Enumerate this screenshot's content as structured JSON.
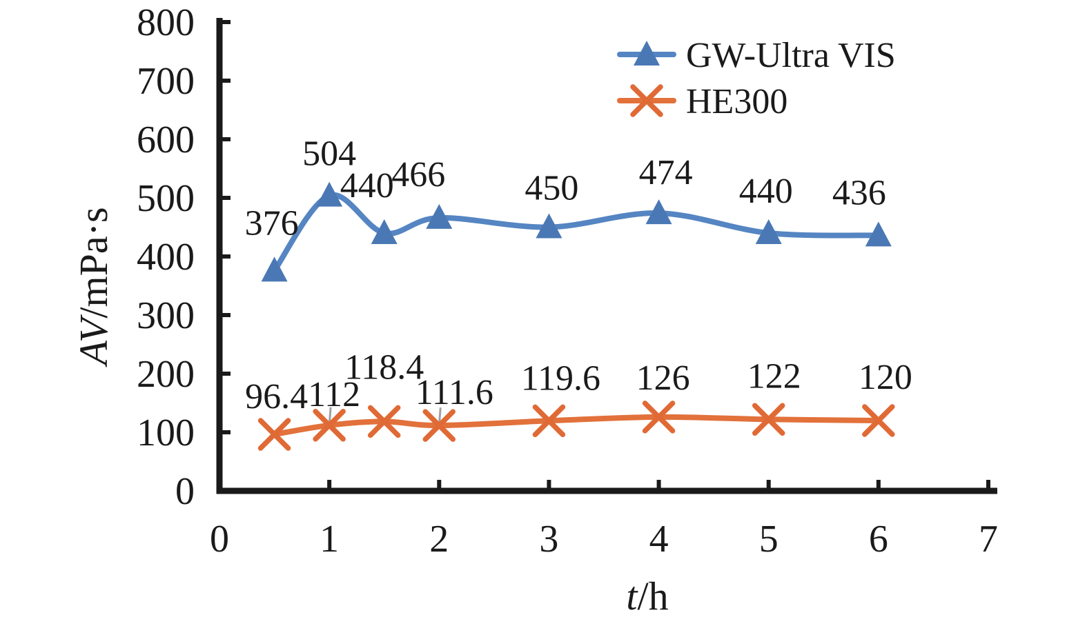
{
  "figure": {
    "background": "#ffffff",
    "text_color": "#1a1a1a",
    "axis_color": "#1a1a1a"
  },
  "chart_data": {
    "type": "line",
    "title": "",
    "xlabel_italic": "t",
    "xlabel_rest": "/h",
    "ylabel_italic": "AV",
    "ylabel_rest": "/mPa·s",
    "xlim": [
      0,
      7
    ],
    "ylim": [
      0,
      800
    ],
    "xticks": [
      "0",
      "1",
      "2",
      "3",
      "4",
      "5",
      "6",
      "7"
    ],
    "yticks": [
      "0",
      "100",
      "200",
      "300",
      "400",
      "500",
      "600",
      "700",
      "800"
    ],
    "grid": false,
    "smoothed_lines": true,
    "legend_position": "top-right-inside",
    "x": [
      0.5,
      1,
      1.5,
      2,
      3,
      4,
      5,
      6
    ],
    "series": [
      {
        "name": "GW-Ultra VIS",
        "line_color": "#5585c2",
        "marker_color": "#4a78b4",
        "marker": "triangle",
        "values": [
          376,
          504,
          440,
          466,
          450,
          474,
          440,
          436
        ],
        "labels": [
          "376",
          "504",
          "440",
          "466",
          "450",
          "474",
          "440",
          "436"
        ],
        "label_offsets": [
          [
            -4,
            -70
          ],
          [
            0,
            -62
          ],
          [
            -25,
            -70
          ],
          [
            -30,
            -64
          ],
          [
            4,
            -58
          ],
          [
            10,
            -60
          ],
          [
            -4,
            -62
          ],
          [
            -28,
            -63
          ]
        ]
      },
      {
        "name": "HE300",
        "line_color": "#e2713b",
        "marker_color": "#e06a35",
        "marker": "x",
        "values": [
          96.4,
          112,
          118.4,
          111.6,
          119.6,
          126,
          122,
          120
        ],
        "labels": [
          "96.4",
          "112",
          "118.4",
          "111.6",
          "119.6",
          "126",
          "122",
          "120"
        ],
        "label_offsets": [
          [
            3,
            -56
          ],
          [
            7,
            -46
          ],
          [
            0,
            -80
          ],
          [
            22,
            -49
          ],
          [
            17,
            -63
          ],
          [
            6,
            -58
          ],
          [
            8,
            -64
          ],
          [
            10,
            -64
          ]
        ],
        "leader_line_points": [
          1,
          3
        ],
        "leader_line_color": "#a0a0a0"
      }
    ]
  }
}
